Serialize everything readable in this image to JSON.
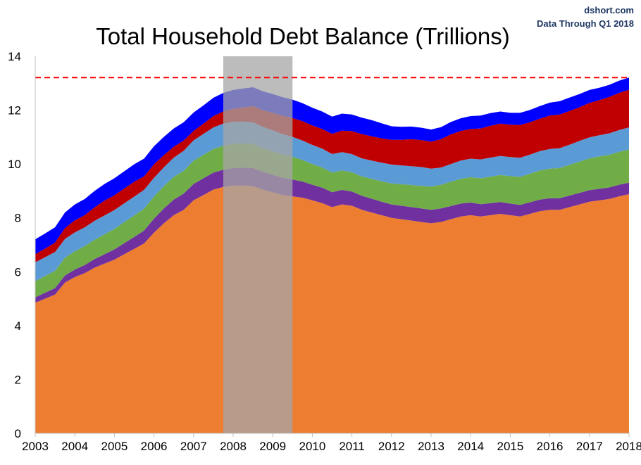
{
  "chart_data": {
    "type": "area",
    "title": "Total Household Debt Balance (Trillions)",
    "source": "dshort.com",
    "note": "Data Through Q1 2018",
    "xlabel": "",
    "ylabel": "",
    "ylim": [
      0,
      14
    ],
    "yticks": [
      "0",
      "2",
      "4",
      "6",
      "8",
      "10",
      "12",
      "14"
    ],
    "xticks": [
      "2003",
      "2004",
      "2005",
      "2006",
      "2007",
      "2008",
      "2009",
      "2010",
      "2011",
      "2012",
      "2013",
      "2014",
      "2015",
      "2016",
      "2017",
      "2018"
    ],
    "grid": false,
    "recession": {
      "start": 2007.75,
      "end": 2009.5
    },
    "reference_line": {
      "value": 13.21,
      "color": "#ff0000",
      "style": "dashed"
    },
    "x": [
      2003.0,
      2003.25,
      2003.5,
      2003.75,
      2004.0,
      2004.25,
      2004.5,
      2004.75,
      2005.0,
      2005.25,
      2005.5,
      2005.75,
      2006.0,
      2006.25,
      2006.5,
      2006.75,
      2007.0,
      2007.25,
      2007.5,
      2007.75,
      2008.0,
      2008.25,
      2008.5,
      2008.75,
      2009.0,
      2009.25,
      2009.5,
      2009.75,
      2010.0,
      2010.25,
      2010.5,
      2010.75,
      2011.0,
      2011.25,
      2011.5,
      2011.75,
      2012.0,
      2012.25,
      2012.5,
      2012.75,
      2013.0,
      2013.25,
      2013.5,
      2013.75,
      2014.0,
      2014.25,
      2014.5,
      2014.75,
      2015.0,
      2015.25,
      2015.5,
      2015.75,
      2016.0,
      2016.25,
      2016.5,
      2016.75,
      2017.0,
      2017.25,
      2017.5,
      2017.75,
      2018.0
    ],
    "series": [
      {
        "color": "#ed7d31",
        "values": [
          4.85,
          5.0,
          5.15,
          5.6,
          5.8,
          5.95,
          6.15,
          6.3,
          6.45,
          6.65,
          6.85,
          7.05,
          7.45,
          7.8,
          8.1,
          8.3,
          8.65,
          8.85,
          9.05,
          9.15,
          9.2,
          9.2,
          9.18,
          9.05,
          8.95,
          8.85,
          8.8,
          8.75,
          8.65,
          8.55,
          8.4,
          8.5,
          8.45,
          8.3,
          8.2,
          8.1,
          8.0,
          7.95,
          7.9,
          7.85,
          7.8,
          7.85,
          7.95,
          8.05,
          8.1,
          8.05,
          8.1,
          8.15,
          8.1,
          8.05,
          8.15,
          8.25,
          8.3,
          8.3,
          8.4,
          8.5,
          8.6,
          8.65,
          8.7,
          8.8,
          8.88
        ]
      },
      {
        "color": "#7030a0",
        "values": [
          0.2,
          0.22,
          0.24,
          0.26,
          0.28,
          0.3,
          0.32,
          0.35,
          0.38,
          0.41,
          0.44,
          0.48,
          0.52,
          0.55,
          0.58,
          0.6,
          0.61,
          0.62,
          0.63,
          0.64,
          0.65,
          0.66,
          0.67,
          0.66,
          0.65,
          0.64,
          0.62,
          0.6,
          0.58,
          0.57,
          0.55,
          0.54,
          0.53,
          0.52,
          0.51,
          0.5,
          0.5,
          0.5,
          0.5,
          0.5,
          0.5,
          0.5,
          0.49,
          0.48,
          0.47,
          0.46,
          0.45,
          0.44,
          0.43,
          0.43,
          0.43,
          0.43,
          0.43,
          0.43,
          0.43,
          0.43,
          0.43,
          0.43,
          0.43,
          0.43,
          0.43
        ]
      },
      {
        "color": "#70ad47",
        "values": [
          0.6,
          0.62,
          0.64,
          0.66,
          0.68,
          0.7,
          0.72,
          0.74,
          0.76,
          0.78,
          0.8,
          0.81,
          0.82,
          0.83,
          0.84,
          0.85,
          0.86,
          0.87,
          0.88,
          0.89,
          0.9,
          0.9,
          0.9,
          0.88,
          0.87,
          0.86,
          0.85,
          0.8,
          0.77,
          0.75,
          0.73,
          0.72,
          0.71,
          0.72,
          0.74,
          0.76,
          0.78,
          0.8,
          0.82,
          0.84,
          0.86,
          0.88,
          0.9,
          0.92,
          0.94,
          0.96,
          0.98,
          1.0,
          1.02,
          1.04,
          1.06,
          1.08,
          1.1,
          1.12,
          1.14,
          1.16,
          1.18,
          1.2,
          1.21,
          1.22,
          1.23
        ]
      },
      {
        "color": "#5b9bd5",
        "values": [
          0.7,
          0.7,
          0.7,
          0.7,
          0.7,
          0.7,
          0.7,
          0.7,
          0.7,
          0.7,
          0.7,
          0.7,
          0.7,
          0.7,
          0.72,
          0.74,
          0.76,
          0.78,
          0.8,
          0.82,
          0.82,
          0.82,
          0.8,
          0.79,
          0.78,
          0.76,
          0.74,
          0.72,
          0.71,
          0.7,
          0.69,
          0.68,
          0.68,
          0.67,
          0.68,
          0.69,
          0.7,
          0.7,
          0.7,
          0.7,
          0.67,
          0.64,
          0.66,
          0.68,
          0.69,
          0.7,
          0.71,
          0.71,
          0.71,
          0.71,
          0.71,
          0.72,
          0.73,
          0.74,
          0.75,
          0.77,
          0.78,
          0.79,
          0.8,
          0.81,
          0.82
        ]
      },
      {
        "color": "#c00000",
        "values": [
          0.3,
          0.32,
          0.35,
          0.4,
          0.45,
          0.45,
          0.5,
          0.55,
          0.55,
          0.55,
          0.55,
          0.5,
          0.5,
          0.45,
          0.4,
          0.38,
          0.35,
          0.38,
          0.42,
          0.45,
          0.48,
          0.52,
          0.6,
          0.62,
          0.65,
          0.68,
          0.7,
          0.72,
          0.72,
          0.73,
          0.75,
          0.8,
          0.85,
          0.9,
          0.9,
          0.9,
          0.92,
          0.95,
          1.0,
          1.0,
          1.0,
          1.05,
          1.1,
          1.1,
          1.1,
          1.15,
          1.18,
          1.2,
          1.2,
          1.22,
          1.2,
          1.2,
          1.24,
          1.25,
          1.25,
          1.25,
          1.28,
          1.3,
          1.35,
          1.38,
          1.4
        ]
      },
      {
        "color": "#0000ff",
        "values": [
          0.55,
          0.56,
          0.57,
          0.58,
          0.59,
          0.6,
          0.61,
          0.62,
          0.63,
          0.64,
          0.65,
          0.66,
          0.67,
          0.68,
          0.68,
          0.68,
          0.68,
          0.68,
          0.68,
          0.69,
          0.7,
          0.7,
          0.7,
          0.7,
          0.7,
          0.69,
          0.68,
          0.67,
          0.66,
          0.65,
          0.64,
          0.63,
          0.62,
          0.61,
          0.6,
          0.56,
          0.5,
          0.48,
          0.47,
          0.46,
          0.45,
          0.45,
          0.46,
          0.47,
          0.48,
          0.48,
          0.47,
          0.45,
          0.44,
          0.45,
          0.46,
          0.47,
          0.48,
          0.49,
          0.5,
          0.49,
          0.48,
          0.46,
          0.45,
          0.45,
          0.45
        ]
      }
    ]
  }
}
